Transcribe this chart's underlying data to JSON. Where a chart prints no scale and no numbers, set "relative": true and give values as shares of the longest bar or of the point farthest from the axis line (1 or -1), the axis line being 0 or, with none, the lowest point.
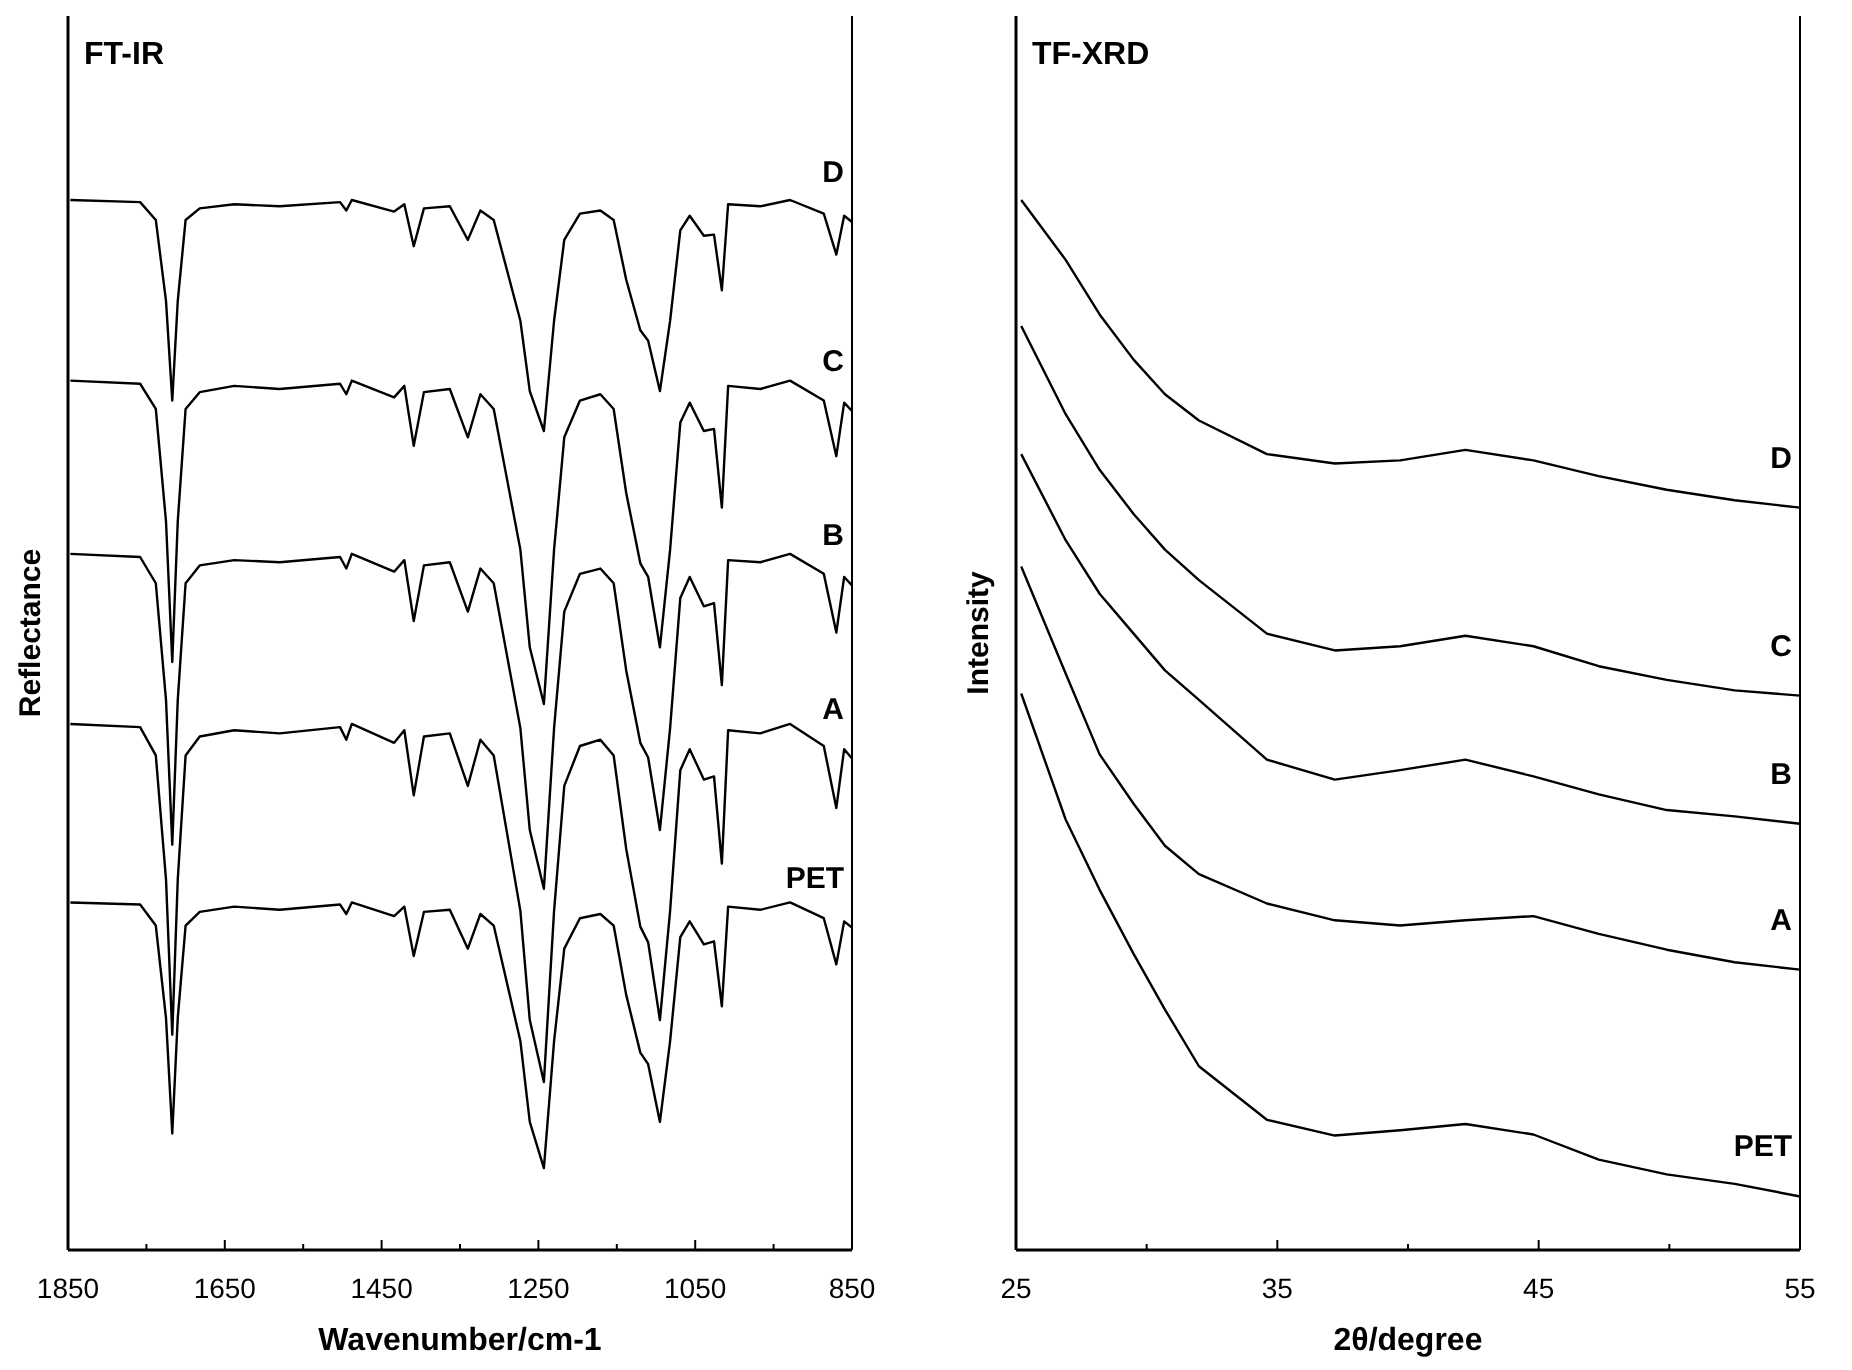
{
  "chart_data": [
    {
      "type": "line",
      "title": "FT-IR",
      "xlabel": "Wavenumber/cm-1",
      "ylabel": "Reflectance",
      "relative": true,
      "tick_labels": "x",
      "xlim": [
        1850,
        850
      ],
      "xticks": [
        1850,
        {
          "value": 1750,
          "label": null
        },
        1650,
        {
          "value": 1550,
          "label": null
        },
        1450,
        {
          "value": 1350,
          "label": null
        },
        1250,
        {
          "value": 1150,
          "label": null
        },
        1050,
        {
          "value": 950,
          "label": null
        },
        850
      ],
      "x": [
        1847,
        1758,
        1738,
        1725,
        1717,
        1710,
        1700,
        1682,
        1638,
        1580,
        1503,
        1495,
        1488,
        1434,
        1421,
        1409,
        1396,
        1363,
        1340,
        1324,
        1307,
        1273,
        1261,
        1243,
        1230,
        1217,
        1197,
        1171,
        1154,
        1138,
        1120,
        1110,
        1095,
        1082,
        1069,
        1057,
        1039,
        1026,
        1016,
        1008,
        967,
        929,
        886,
        870,
        860,
        850
      ],
      "series": [
        {
          "name": "D",
          "color": "#000000",
          "values": [
            1.0,
            0.998,
            0.981,
            0.904,
            0.809,
            0.904,
            0.981,
            0.992,
            0.996,
            0.994,
            0.998,
            0.99,
            1.0,
            0.989,
            0.996,
            0.956,
            0.992,
            0.994,
            0.962,
            0.99,
            0.981,
            0.885,
            0.818,
            0.78,
            0.885,
            0.962,
            0.987,
            0.99,
            0.981,
            0.924,
            0.876,
            0.866,
            0.818,
            0.885,
            0.971,
            0.985,
            0.966,
            0.967,
            0.914,
            0.996,
            0.994,
            1.0,
            0.987,
            0.948,
            0.985,
            0.979
          ]
        },
        {
          "name": "C",
          "color": "#000000",
          "values": [
            0.828,
            0.825,
            0.801,
            0.694,
            0.56,
            0.694,
            0.801,
            0.817,
            0.823,
            0.82,
            0.825,
            0.815,
            0.828,
            0.812,
            0.823,
            0.766,
            0.817,
            0.82,
            0.774,
            0.815,
            0.801,
            0.667,
            0.574,
            0.52,
            0.667,
            0.774,
            0.809,
            0.815,
            0.801,
            0.721,
            0.654,
            0.641,
            0.574,
            0.667,
            0.788,
            0.807,
            0.78,
            0.782,
            0.707,
            0.823,
            0.82,
            0.828,
            0.809,
            0.756,
            0.807,
            0.799
          ]
        },
        {
          "name": "B",
          "color": "#000000",
          "values": [
            0.663,
            0.66,
            0.635,
            0.524,
            0.386,
            0.524,
            0.635,
            0.652,
            0.657,
            0.655,
            0.66,
            0.649,
            0.663,
            0.646,
            0.657,
            0.599,
            0.652,
            0.655,
            0.608,
            0.649,
            0.635,
            0.497,
            0.4,
            0.344,
            0.497,
            0.608,
            0.644,
            0.649,
            0.635,
            0.552,
            0.483,
            0.469,
            0.4,
            0.497,
            0.621,
            0.641,
            0.613,
            0.616,
            0.538,
            0.657,
            0.655,
            0.663,
            0.644,
            0.588,
            0.641,
            0.633
          ]
        },
        {
          "name": "A",
          "color": "#000000",
          "values": [
            0.501,
            0.498,
            0.471,
            0.353,
            0.205,
            0.353,
            0.471,
            0.489,
            0.495,
            0.492,
            0.498,
            0.486,
            0.501,
            0.483,
            0.495,
            0.433,
            0.489,
            0.492,
            0.442,
            0.486,
            0.471,
            0.323,
            0.219,
            0.16,
            0.323,
            0.442,
            0.48,
            0.486,
            0.471,
            0.382,
            0.308,
            0.293,
            0.219,
            0.323,
            0.457,
            0.477,
            0.448,
            0.451,
            0.368,
            0.495,
            0.492,
            0.501,
            0.48,
            0.421,
            0.477,
            0.468
          ]
        },
        {
          "name": "PET",
          "color": "#000000",
          "values": [
            0.331,
            0.329,
            0.309,
            0.221,
            0.111,
            0.221,
            0.309,
            0.322,
            0.327,
            0.324,
            0.329,
            0.32,
            0.331,
            0.318,
            0.327,
            0.28,
            0.322,
            0.324,
            0.287,
            0.32,
            0.309,
            0.199,
            0.122,
            0.078,
            0.199,
            0.287,
            0.316,
            0.32,
            0.309,
            0.243,
            0.188,
            0.177,
            0.122,
            0.199,
            0.298,
            0.313,
            0.291,
            0.294,
            0.232,
            0.327,
            0.324,
            0.331,
            0.316,
            0.272,
            0.313,
            0.307
          ]
        }
      ]
    },
    {
      "type": "line",
      "title": "TF-XRD",
      "xlabel": "2θ/degree",
      "ylabel": "Intensity",
      "relative": true,
      "tick_labels": "x",
      "xlim": [
        25,
        55
      ],
      "xticks": [
        25,
        {
          "value": 30,
          "label": null
        },
        35,
        {
          "value": 40,
          "label": null
        },
        45,
        {
          "value": 50,
          "label": null
        },
        55
      ],
      "x": [
        25.2,
        26.9,
        28.2,
        29.5,
        30.7,
        32.0,
        34.6,
        37.2,
        39.7,
        42.2,
        44.8,
        47.3,
        49.9,
        52.5,
        55.0
      ],
      "series": [
        {
          "name": "D",
          "color": "#000000",
          "values": [
            1.0,
            0.943,
            0.891,
            0.848,
            0.815,
            0.79,
            0.758,
            0.749,
            0.752,
            0.762,
            0.752,
            0.737,
            0.724,
            0.714,
            0.707
          ]
        },
        {
          "name": "C",
          "color": "#000000",
          "values": [
            0.88,
            0.796,
            0.743,
            0.701,
            0.667,
            0.638,
            0.587,
            0.571,
            0.575,
            0.585,
            0.575,
            0.556,
            0.543,
            0.533,
            0.528
          ]
        },
        {
          "name": "B",
          "color": "#000000",
          "values": [
            0.758,
            0.676,
            0.625,
            0.587,
            0.552,
            0.524,
            0.467,
            0.448,
            0.457,
            0.467,
            0.451,
            0.434,
            0.419,
            0.413,
            0.406
          ]
        },
        {
          "name": "A",
          "color": "#000000",
          "values": [
            0.651,
            0.549,
            0.472,
            0.425,
            0.385,
            0.358,
            0.33,
            0.314,
            0.309,
            0.314,
            0.318,
            0.301,
            0.286,
            0.274,
            0.267
          ]
        },
        {
          "name": "PET",
          "color": "#000000",
          "values": [
            0.53,
            0.41,
            0.343,
            0.282,
            0.229,
            0.175,
            0.124,
            0.109,
            0.114,
            0.12,
            0.11,
            0.086,
            0.072,
            0.063,
            0.051
          ]
        }
      ]
    }
  ]
}
